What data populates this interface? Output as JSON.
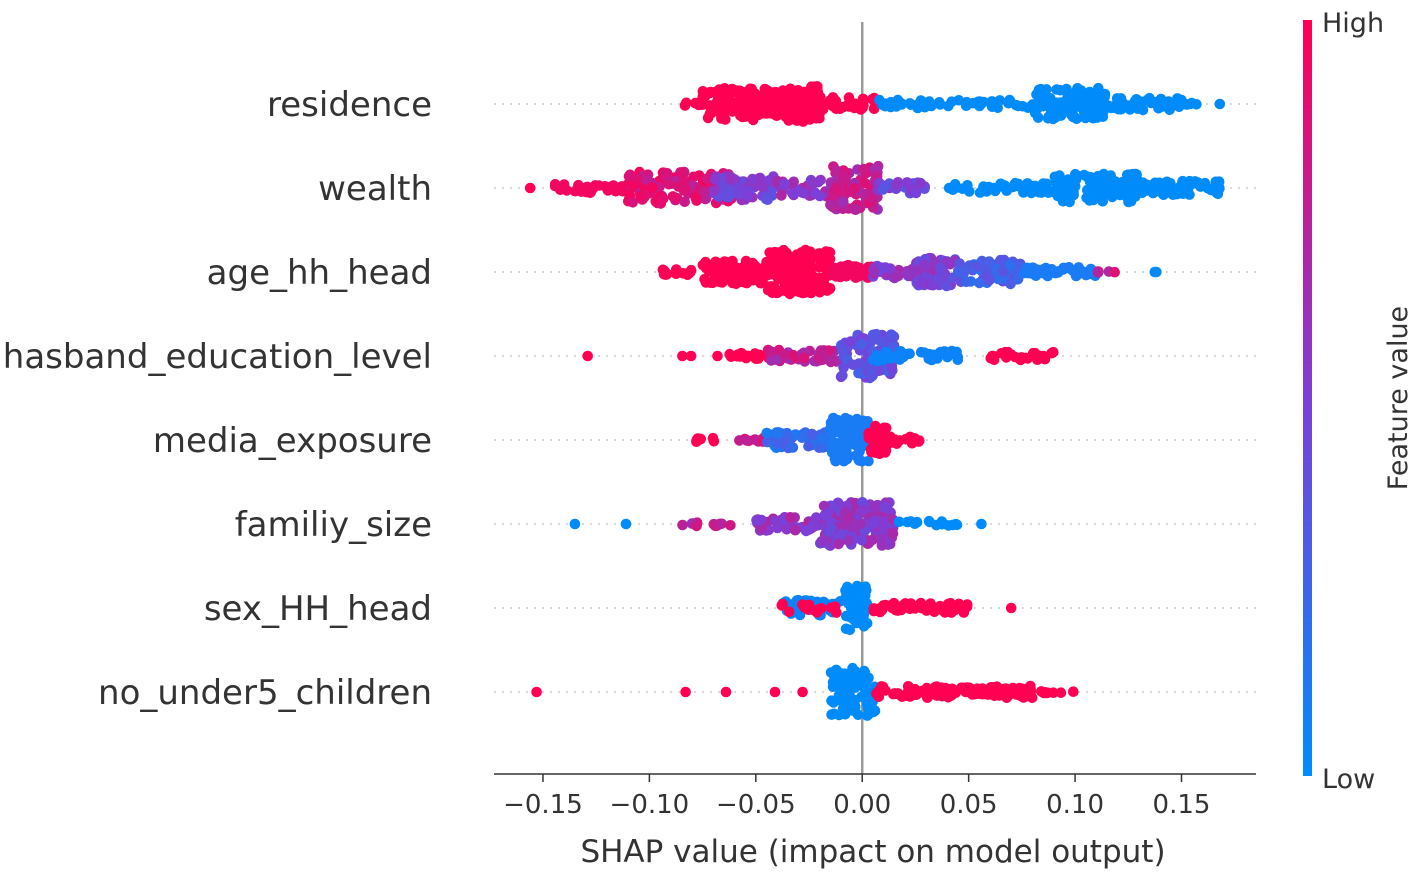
{
  "chart_data": {
    "type": "scatter",
    "subtype": "shap-beeswarm",
    "xlabel": "SHAP value (impact on model output)",
    "xlim": [
      -0.173,
      0.185
    ],
    "xticks": [
      -0.15,
      -0.1,
      -0.05,
      0.0,
      0.05,
      0.1,
      0.15
    ],
    "xtick_labels": [
      "−0.15",
      "−0.10",
      "−0.05",
      "0.00",
      "0.05",
      "0.10",
      "0.15"
    ],
    "colorbar": {
      "title": "Feature value",
      "high_label": "High",
      "low_label": "Low",
      "high_color": "#ff0052",
      "low_color": "#008bfb"
    },
    "features": [
      {
        "name": "residence",
        "segments": [
          {
            "from": -0.085,
            "to": -0.075,
            "n": 6,
            "spread": 2,
            "value": 1.0
          },
          {
            "from": -0.075,
            "to": -0.045,
            "n": 110,
            "spread": 16,
            "value": 1.0
          },
          {
            "from": -0.045,
            "to": -0.035,
            "n": 40,
            "spread": 14,
            "value": 1.0
          },
          {
            "from": -0.035,
            "to": -0.02,
            "n": 70,
            "spread": 18,
            "value": 1.0
          },
          {
            "from": -0.02,
            "to": 0.008,
            "n": 30,
            "spread": 7,
            "value": 1.0
          },
          {
            "from": 0.008,
            "to": 0.08,
            "n": 50,
            "spread": 4,
            "value": 0.0
          },
          {
            "from": 0.08,
            "to": 0.115,
            "n": 110,
            "spread": 16,
            "value": 0.0
          },
          {
            "from": 0.115,
            "to": 0.15,
            "n": 40,
            "spread": 6,
            "value": 0.0
          },
          {
            "from": 0.15,
            "to": 0.16,
            "n": 4,
            "spread": 1,
            "value": 0.0
          },
          {
            "from": 0.168,
            "to": 0.168,
            "n": 1,
            "spread": 0,
            "value": 0.0
          }
        ]
      },
      {
        "name": "wealth",
        "segments": [
          {
            "from": -0.156,
            "to": -0.156,
            "n": 1,
            "spread": 0,
            "value": 1.0
          },
          {
            "from": -0.145,
            "to": -0.1,
            "n": 45,
            "spread": 5,
            "value": 0.95
          },
          {
            "from": -0.11,
            "to": -0.06,
            "n": 110,
            "spread": 16,
            "value": 0.85
          },
          {
            "from": -0.07,
            "to": -0.04,
            "n": 60,
            "spread": 12,
            "value": 0.5
          },
          {
            "from": -0.04,
            "to": -0.01,
            "n": 50,
            "spread": 8,
            "value": 0.6
          },
          {
            "from": -0.015,
            "to": 0.008,
            "n": 90,
            "spread": 22,
            "value": 0.75
          },
          {
            "from": 0.005,
            "to": 0.03,
            "n": 25,
            "spread": 6,
            "value": 0.45
          },
          {
            "from": 0.04,
            "to": 0.09,
            "n": 50,
            "spread": 5,
            "value": 0.0
          },
          {
            "from": 0.09,
            "to": 0.13,
            "n": 90,
            "spread": 14,
            "value": 0.0
          },
          {
            "from": 0.13,
            "to": 0.17,
            "n": 50,
            "spread": 7,
            "value": 0.0
          }
        ]
      },
      {
        "name": "age_hh_head",
        "segments": [
          {
            "from": -0.095,
            "to": -0.08,
            "n": 15,
            "spread": 3,
            "value": 1.0
          },
          {
            "from": -0.075,
            "to": -0.045,
            "n": 80,
            "spread": 12,
            "value": 1.0
          },
          {
            "from": -0.045,
            "to": -0.015,
            "n": 130,
            "spread": 22,
            "value": 1.0
          },
          {
            "from": -0.015,
            "to": 0.005,
            "n": 35,
            "spread": 7,
            "value": 0.95
          },
          {
            "from": 0.005,
            "to": 0.025,
            "n": 30,
            "spread": 6,
            "value": 0.55
          },
          {
            "from": 0.025,
            "to": 0.045,
            "n": 70,
            "spread": 14,
            "value": 0.5
          },
          {
            "from": 0.045,
            "to": 0.075,
            "n": 60,
            "spread": 12,
            "value": 0.3
          },
          {
            "from": 0.075,
            "to": 0.11,
            "n": 40,
            "spread": 5,
            "value": 0.1
          },
          {
            "from": 0.11,
            "to": 0.12,
            "n": 4,
            "spread": 1,
            "value": 0.8
          },
          {
            "from": 0.136,
            "to": 0.14,
            "n": 2,
            "spread": 0,
            "value": 0.0
          }
        ]
      },
      {
        "name": "hasband_education_level",
        "segments": [
          {
            "from": -0.129,
            "to": -0.129,
            "n": 1,
            "spread": 0,
            "value": 1.0
          },
          {
            "from": -0.088,
            "to": -0.08,
            "n": 2,
            "spread": 0,
            "value": 1.0
          },
          {
            "from": -0.068,
            "to": -0.068,
            "n": 1,
            "spread": 0,
            "value": 1.0
          },
          {
            "from": -0.065,
            "to": -0.04,
            "n": 20,
            "spread": 3,
            "value": 1.0
          },
          {
            "from": -0.045,
            "to": -0.01,
            "n": 50,
            "spread": 6,
            "value": 0.75
          },
          {
            "from": -0.01,
            "to": 0.015,
            "n": 90,
            "spread": 22,
            "value": 0.4
          },
          {
            "from": 0.005,
            "to": 0.045,
            "n": 35,
            "spread": 5,
            "value": 0.05
          },
          {
            "from": 0.06,
            "to": 0.09,
            "n": 25,
            "spread": 4,
            "value": 1.0
          }
        ]
      },
      {
        "name": "media_exposure",
        "segments": [
          {
            "from": -0.078,
            "to": -0.068,
            "n": 8,
            "spread": 2,
            "value": 1.0
          },
          {
            "from": -0.06,
            "to": -0.045,
            "n": 10,
            "spread": 2,
            "value": 0.85
          },
          {
            "from": -0.045,
            "to": -0.015,
            "n": 50,
            "spread": 8,
            "value": 0.2
          },
          {
            "from": -0.015,
            "to": 0.003,
            "n": 90,
            "spread": 22,
            "value": 0.1
          },
          {
            "from": 0.003,
            "to": 0.012,
            "n": 35,
            "spread": 14,
            "value": 1.0
          },
          {
            "from": 0.012,
            "to": 0.027,
            "n": 20,
            "spread": 4,
            "value": 1.0
          }
        ]
      },
      {
        "name": "familiy_size",
        "segments": [
          {
            "from": -0.135,
            "to": -0.135,
            "n": 1,
            "spread": 0,
            "value": 0.0
          },
          {
            "from": -0.111,
            "to": -0.111,
            "n": 1,
            "spread": 0,
            "value": 0.0
          },
          {
            "from": -0.085,
            "to": -0.06,
            "n": 12,
            "spread": 2,
            "value": 0.7
          },
          {
            "from": -0.05,
            "to": -0.02,
            "n": 45,
            "spread": 7,
            "value": 0.6
          },
          {
            "from": -0.02,
            "to": 0.015,
            "n": 170,
            "spread": 22,
            "value": 0.55
          },
          {
            "from": 0.015,
            "to": 0.045,
            "n": 15,
            "spread": 3,
            "value": 0.0
          },
          {
            "from": 0.056,
            "to": 0.056,
            "n": 1,
            "spread": 0,
            "value": 0.0
          }
        ]
      },
      {
        "name": "sex_HH_head",
        "segments": [
          {
            "from": -0.038,
            "to": -0.01,
            "n": 40,
            "spread": 8,
            "value": 0.05
          },
          {
            "from": -0.038,
            "to": -0.01,
            "n": 15,
            "spread": 5,
            "value": 1.0
          },
          {
            "from": -0.008,
            "to": 0.003,
            "n": 50,
            "spread": 22,
            "value": 0.0
          },
          {
            "from": 0.003,
            "to": 0.05,
            "n": 60,
            "spread": 5,
            "value": 1.0
          },
          {
            "from": 0.07,
            "to": 0.07,
            "n": 1,
            "spread": 0,
            "value": 1.0
          }
        ]
      },
      {
        "name": "no_under5_children",
        "segments": [
          {
            "from": -0.153,
            "to": -0.153,
            "n": 1,
            "spread": 0,
            "value": 1.0
          },
          {
            "from": -0.083,
            "to": -0.083,
            "n": 1,
            "spread": 0,
            "value": 1.0
          },
          {
            "from": -0.064,
            "to": -0.064,
            "n": 1,
            "spread": 0,
            "value": 1.0
          },
          {
            "from": -0.041,
            "to": -0.041,
            "n": 1,
            "spread": 0,
            "value": 1.0
          },
          {
            "from": -0.028,
            "to": -0.028,
            "n": 1,
            "spread": 0,
            "value": 1.0
          },
          {
            "from": -0.015,
            "to": 0.006,
            "n": 80,
            "spread": 24,
            "value": 0.0
          },
          {
            "from": 0.006,
            "to": 0.08,
            "n": 120,
            "spread": 6,
            "value": 1.0
          },
          {
            "from": 0.08,
            "to": 0.1,
            "n": 8,
            "spread": 1,
            "value": 1.0
          }
        ]
      }
    ]
  }
}
